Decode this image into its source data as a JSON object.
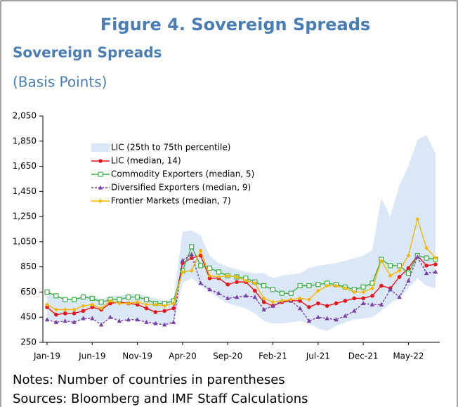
{
  "figure_title": "Figure 4. Sovereign Spreads",
  "chart_data": {
    "type": "line",
    "title": "Sovereign Spreads",
    "subtitle": "(Basis Points)",
    "categories": [
      "Jan-19",
      null,
      null,
      null,
      null,
      "Jun-19",
      null,
      null,
      null,
      null,
      "Nov-19",
      null,
      null,
      null,
      null,
      "Apr-20",
      null,
      null,
      null,
      null,
      "Sep-20",
      null,
      null,
      null,
      null,
      "Feb-21",
      null,
      null,
      null,
      null,
      "Jul-21",
      null,
      null,
      null,
      null,
      "Dec-21",
      null,
      null,
      null,
      null,
      "May-22",
      null,
      null,
      null
    ],
    "ylim": [
      250,
      2050
    ],
    "yticks": [
      250,
      450,
      650,
      850,
      {
        "value": 1050,
        "label": "1,050"
      },
      {
        "value": 1250,
        "label": "1,250"
      },
      {
        "value": 1450,
        "label": "1,450"
      },
      {
        "value": 1650,
        "label": "1,650"
      },
      {
        "value": 1850,
        "label": "1,850"
      },
      {
        "value": 2050,
        "label": "2,050"
      }
    ],
    "legend": "upper left",
    "series": [
      {
        "name": "LIC (25th to 75th percentile)",
        "kind": "band",
        "color": "#dae7f6",
        "low": [
          430,
          420,
          420,
          410,
          430,
          440,
          400,
          440,
          430,
          430,
          420,
          410,
          400,
          390,
          400,
          720,
          760,
          700,
          650,
          600,
          560,
          540,
          520,
          480,
          420,
          400,
          400,
          410,
          420,
          400,
          360,
          340,
          380,
          410,
          430,
          440,
          450,
          500,
          560,
          600,
          680,
          760,
          700,
          680
        ],
        "high": [
          640,
          620,
          600,
          600,
          620,
          620,
          590,
          620,
          620,
          630,
          630,
          620,
          600,
          580,
          600,
          1130,
          1140,
          1100,
          940,
          880,
          850,
          830,
          810,
          800,
          800,
          760,
          780,
          790,
          800,
          840,
          860,
          870,
          880,
          900,
          920,
          940,
          980,
          1400,
          1250,
          1500,
          1650,
          1860,
          1900,
          1750
        ]
      },
      {
        "name": "LIC (median, 14)",
        "color": "#e8141c",
        "marker": "circle",
        "values": [
          530,
          470,
          480,
          480,
          500,
          530,
          510,
          560,
          570,
          560,
          550,
          520,
          490,
          500,
          520,
          880,
          920,
          940,
          760,
          760,
          710,
          730,
          730,
          660,
          570,
          540,
          570,
          580,
          580,
          530,
          560,
          540,
          560,
          580,
          600,
          600,
          620,
          700,
          680,
          770,
          840,
          940,
          860,
          870
        ]
      },
      {
        "name": "Commodity Exporters (median, 5)",
        "color": "#3cb043",
        "marker": "square",
        "values": [
          650,
          620,
          590,
          590,
          610,
          600,
          570,
          590,
          590,
          610,
          610,
          590,
          560,
          560,
          580,
          820,
          1010,
          860,
          840,
          810,
          780,
          770,
          760,
          730,
          700,
          670,
          640,
          640,
          700,
          700,
          710,
          720,
          710,
          690,
          670,
          690,
          720,
          910,
          860,
          860,
          800,
          940,
          920,
          910
        ]
      },
      {
        "name": "Diversified Exporters (median, 9)",
        "color": "#7b3fa8",
        "marker": "triangle",
        "dashed": true,
        "values": [
          430,
          410,
          420,
          410,
          440,
          440,
          390,
          450,
          420,
          430,
          430,
          410,
          400,
          390,
          410,
          900,
          950,
          720,
          670,
          640,
          600,
          610,
          620,
          610,
          510,
          540,
          580,
          580,
          520,
          420,
          450,
          440,
          430,
          460,
          500,
          560,
          550,
          550,
          670,
          610,
          740,
          930,
          800,
          810
        ]
      },
      {
        "name": "Frontier Markets (median, 7)",
        "color": "#f5b800",
        "marker": "diamond",
        "values": [
          550,
          510,
          510,
          510,
          540,
          550,
          520,
          580,
          560,
          560,
          570,
          550,
          550,
          540,
          560,
          810,
          820,
          980,
          780,
          770,
          780,
          770,
          740,
          720,
          600,
          570,
          580,
          590,
          600,
          590,
          660,
          700,
          700,
          680,
          650,
          650,
          680,
          900,
          780,
          820,
          940,
          1230,
          1000,
          920
        ]
      }
    ]
  },
  "notes": [
    "Notes: Number of countries in parentheses",
    "Sources: Bloomberg and IMF Staff Calculations"
  ]
}
